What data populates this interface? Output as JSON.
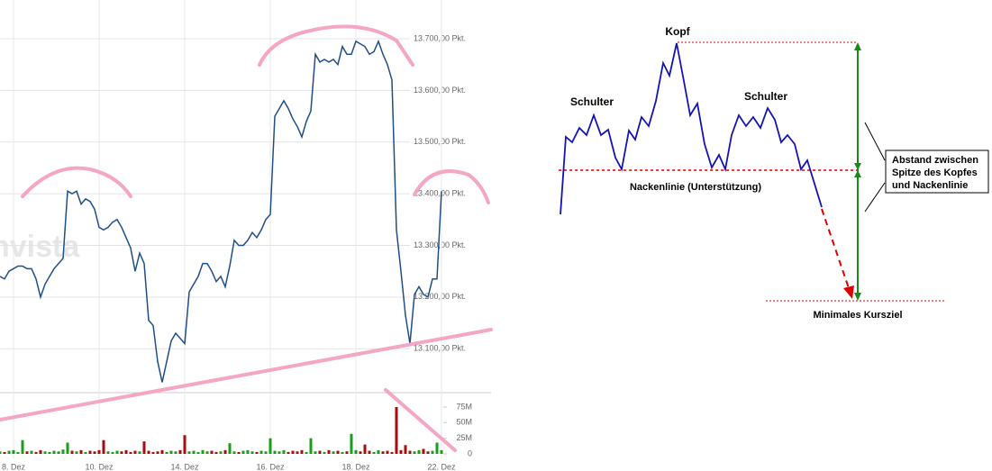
{
  "chart_data": {
    "type": "line",
    "watermark": "nvista",
    "categories": [
      null,
      null,
      null,
      "8. Dez",
      null,
      null,
      null,
      null,
      null,
      null,
      null,
      null,
      null,
      null,
      null,
      null,
      null,
      null,
      null,
      null,
      null,
      null,
      "10. Dez",
      null,
      null,
      null,
      null,
      null,
      null,
      null,
      null,
      null,
      null,
      null,
      null,
      null,
      null,
      null,
      null,
      null,
      null,
      "14. Dez",
      null,
      null,
      null,
      null,
      null,
      null,
      null,
      null,
      null,
      null,
      null,
      null,
      null,
      null,
      null,
      null,
      null,
      null,
      "16. Dez",
      null,
      null,
      null,
      null,
      null,
      null,
      null,
      null,
      null,
      null,
      null,
      null,
      null,
      null,
      null,
      null,
      null,
      null,
      "18. Dez",
      null,
      null,
      null,
      null,
      null,
      null,
      null,
      null,
      null,
      null,
      null,
      null,
      null,
      null,
      null,
      null,
      null,
      null,
      "22. Dez"
    ],
    "series": [
      {
        "color": "#1f4e89",
        "values": [
          13240,
          13235,
          13250,
          13255,
          13260,
          13260,
          13255,
          13255,
          13235,
          13200,
          13225,
          13240,
          13255,
          13265,
          13275,
          13405,
          13400,
          13405,
          13380,
          13390,
          13385,
          13370,
          13335,
          13330,
          13335,
          13345,
          13350,
          13335,
          13315,
          13295,
          13250,
          13285,
          13265,
          13155,
          13145,
          13075,
          13035,
          13075,
          13115,
          13130,
          13120,
          13110,
          13210,
          13225,
          13240,
          13265,
          13265,
          13250,
          13230,
          13240,
          13220,
          13260,
          13310,
          13300,
          13300,
          13310,
          13325,
          13315,
          13330,
          13350,
          13360,
          13550,
          13565,
          13580,
          13565,
          13545,
          13530,
          13510,
          13540,
          13560,
          13670,
          13655,
          13660,
          13655,
          13660,
          13650,
          13685,
          13670,
          13670,
          13695,
          13690,
          13685,
          13670,
          13675,
          13695,
          13670,
          13650,
          13620,
          13330,
          13250,
          13165,
          13110,
          13205,
          13220,
          13205,
          13200,
          13235,
          13235,
          13405
        ]
      }
    ],
    "ylim": [
      13015,
      13775
    ],
    "yticks": [
      {
        "value": 13100,
        "label": "13.100,00 Pkt."
      },
      {
        "value": 13200,
        "label": "13.200,00 Pkt."
      },
      {
        "value": 13300,
        "label": "13.300,00 Pkt."
      },
      {
        "value": 13400,
        "label": "13.400,00 Pkt."
      },
      {
        "value": 13500,
        "label": "13.500,00 Pkt."
      },
      {
        "value": 13600,
        "label": "13.600,00 Pkt."
      },
      {
        "value": 13700,
        "label": "13.700,00 Pkt."
      }
    ],
    "grid": true,
    "volume": {
      "type": "bar",
      "up_color": "#1a9e1a",
      "down_color": "#a80d0d",
      "values": [
        4,
        3,
        5,
        6,
        3,
        22,
        4,
        5,
        3,
        6,
        4,
        3,
        5,
        4,
        7,
        18,
        5,
        4,
        6,
        3,
        5,
        4,
        6,
        22,
        4,
        3,
        5,
        4,
        6,
        3,
        5,
        4,
        20,
        5,
        3,
        4,
        6,
        3,
        5,
        4,
        6,
        30,
        4,
        5,
        3,
        6,
        4,
        5,
        3,
        4,
        6,
        17,
        4,
        3,
        5,
        6,
        4,
        3,
        5,
        4,
        25,
        5,
        4,
        6,
        3,
        5,
        4,
        6,
        3,
        25,
        4,
        5,
        3,
        6,
        4,
        5,
        3,
        4,
        32,
        6,
        4,
        15,
        5,
        3,
        6,
        4,
        5,
        3,
        75,
        6,
        14,
        5,
        4,
        6,
        8,
        4,
        5,
        18,
        6
      ],
      "ylim": [
        0,
        98
      ],
      "yticks": [
        0,
        {
          "value": 25,
          "label": "25M"
        },
        {
          "value": 50,
          "label": "50M"
        },
        {
          "value": 75,
          "label": "75M"
        }
      ]
    }
  },
  "diagram": {
    "head": "Kopf",
    "left_shoulder": "Schulter",
    "right_shoulder": "Schulter",
    "neckline": "Nackenlinie (Unterstützung)",
    "distance_note": [
      "Abstand zwischen",
      "Spitze des Kopfes",
      "und Nackenlinie"
    ],
    "target": "Minimales Kursziel"
  }
}
